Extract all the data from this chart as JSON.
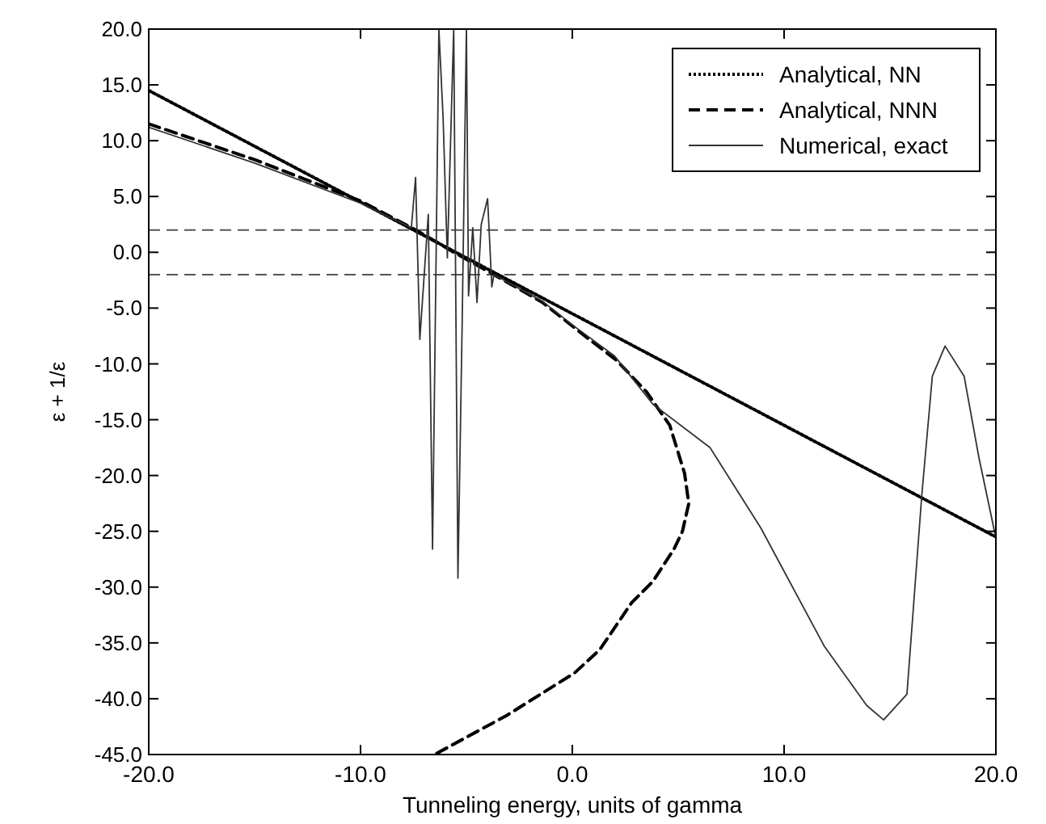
{
  "chart_data": {
    "type": "line",
    "xlabel": "Tunneling energy, units of gamma",
    "ylabel": "ε + 1/ε",
    "xlim": [
      -20,
      20
    ],
    "ylim": [
      -45,
      20
    ],
    "xticks": [
      {
        "value": -20,
        "label": "-20.0"
      },
      {
        "value": -10,
        "label": "-10.0"
      },
      {
        "value": 0,
        "label": "0.0"
      },
      {
        "value": 10,
        "label": "10.0"
      },
      {
        "value": 20,
        "label": "20.0"
      }
    ],
    "yticks": [
      {
        "value": 20,
        "label": "20.0"
      },
      {
        "value": 15,
        "label": "15.0"
      },
      {
        "value": 10,
        "label": "10.0"
      },
      {
        "value": 5,
        "label": "5.0"
      },
      {
        "value": 0,
        "label": "0.0"
      },
      {
        "value": -5,
        "label": "-5.0"
      },
      {
        "value": -10,
        "label": "-10.0"
      },
      {
        "value": -15,
        "label": "-15.0"
      },
      {
        "value": -20,
        "label": "-20.0"
      },
      {
        "value": -25,
        "label": "-25.0"
      },
      {
        "value": -30,
        "label": "-30.0"
      },
      {
        "value": -35,
        "label": "-35.0"
      },
      {
        "value": -40,
        "label": "-40.0"
      },
      {
        "value": -45,
        "label": "-45.0"
      }
    ],
    "grid": false,
    "legend": "top right",
    "marker": "none",
    "ref_lines": [
      {
        "axis": "y",
        "value": 2,
        "color": "#555555",
        "line_style": "dashed"
      },
      {
        "axis": "y",
        "value": -2,
        "color": "#555555",
        "line_style": "dashed"
      }
    ],
    "series": [
      {
        "name": "Analytical, NN",
        "color": "#000000",
        "line_style": "dotted",
        "x": [
          -20,
          20
        ],
        "values": [
          14.5,
          -25.5
        ]
      },
      {
        "name": "Analytical, NNN",
        "color": "#000000",
        "line_style": "dashed",
        "x": [
          -20,
          -15,
          -10,
          -7.3,
          -5.5,
          -3.7,
          -1.4,
          0.8,
          2.1,
          3.5,
          4.6,
          5.3,
          5.5,
          5.2,
          4.8,
          3.8,
          2.8,
          1.3,
          0.1,
          -3.1,
          -6.5
        ],
        "values": [
          11.5,
          8.3,
          4.6,
          1.9,
          -0.1,
          -2.0,
          -4.5,
          -7.8,
          -9.7,
          -12.5,
          -15.5,
          -19.8,
          -22.5,
          -25,
          -26.6,
          -29.5,
          -31.4,
          -35.6,
          -37.7,
          -41.5,
          -45
        ]
      },
      {
        "name": "Numerical, exact",
        "color": "#333333",
        "line_style": "solid",
        "x": [
          -20,
          -15,
          -10,
          -7.6,
          -7.4,
          -7.2,
          -6.8,
          -6.6,
          -6.3,
          -6.1,
          -5.9,
          -5.6,
          -5.4,
          -5.2,
          -5.0,
          -4.9,
          -4.7,
          -4.5,
          -4.3,
          -4.0,
          -3.8,
          -3.7,
          -1.4,
          0,
          2,
          3.8,
          6.5,
          8.9,
          11.9,
          13.9,
          14.7,
          15.8,
          16.5,
          17.0,
          17.6,
          18.5,
          19.2,
          20
        ],
        "values": [
          11.2,
          8.0,
          4.4,
          2.2,
          6.7,
          -7.8,
          3.4,
          -26.6,
          20,
          12,
          -0.5,
          20,
          -29.2,
          -6.3,
          20,
          -3.9,
          2.2,
          -4.5,
          2.5,
          4.8,
          -3.1,
          -2.0,
          -4.4,
          -6.5,
          -9.3,
          -13.6,
          -17.5,
          -24.7,
          -35.3,
          -40.6,
          -41.9,
          -39.6,
          -21.8,
          -11.1,
          -8.4,
          -11.1,
          -18.4,
          -25.6
        ]
      }
    ]
  }
}
